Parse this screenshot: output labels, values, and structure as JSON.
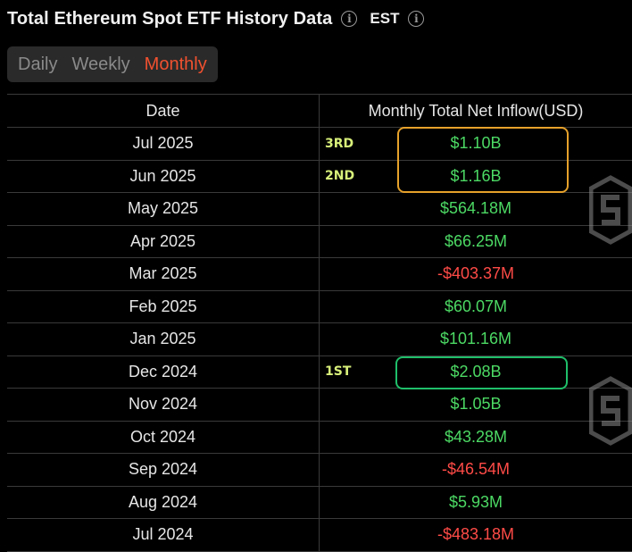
{
  "header": {
    "title": "Total Ethereum Spot ETF History Data",
    "timezone": "EST",
    "info_icon": "info-icon"
  },
  "tabs": [
    {
      "label": "Daily",
      "active": false
    },
    {
      "label": "Weekly",
      "active": false
    },
    {
      "label": "Monthly",
      "active": true
    }
  ],
  "colors": {
    "positive": "#4cd964",
    "negative": "#ff4b47",
    "active_tab": "#f0512f",
    "rank_label": "#d8f07a",
    "highlight_top": "#e6a12a",
    "highlight_best": "#1fbf6a"
  },
  "table": {
    "columns": [
      "Date",
      "Monthly Total Net Inflow(USD)"
    ],
    "rows": [
      {
        "date": "Jul 2025",
        "value": "$1.10B",
        "sign": "pos",
        "rank": "3RD"
      },
      {
        "date": "Jun 2025",
        "value": "$1.16B",
        "sign": "pos",
        "rank": "2ND"
      },
      {
        "date": "May 2025",
        "value": "$564.18M",
        "sign": "pos",
        "rank": ""
      },
      {
        "date": "Apr 2025",
        "value": "$66.25M",
        "sign": "pos",
        "rank": ""
      },
      {
        "date": "Mar 2025",
        "value": "-$403.37M",
        "sign": "neg",
        "rank": ""
      },
      {
        "date": "Feb 2025",
        "value": "$60.07M",
        "sign": "pos",
        "rank": ""
      },
      {
        "date": "Jan 2025",
        "value": "$101.16M",
        "sign": "pos",
        "rank": ""
      },
      {
        "date": "Dec 2024",
        "value": "$2.08B",
        "sign": "pos",
        "rank": "1ST"
      },
      {
        "date": "Nov 2024",
        "value": "$1.05B",
        "sign": "pos",
        "rank": ""
      },
      {
        "date": "Oct 2024",
        "value": "$43.28M",
        "sign": "pos",
        "rank": ""
      },
      {
        "date": "Sep 2024",
        "value": "-$46.54M",
        "sign": "neg",
        "rank": ""
      },
      {
        "date": "Aug 2024",
        "value": "$5.93M",
        "sign": "pos",
        "rank": ""
      },
      {
        "date": "Jul 2024",
        "value": "-$483.18M",
        "sign": "neg",
        "rank": ""
      }
    ]
  },
  "watermark": "sosovalue-logo"
}
